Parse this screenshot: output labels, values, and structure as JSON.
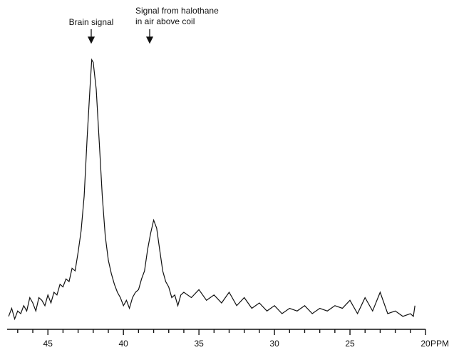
{
  "chart_data": {
    "type": "line",
    "annotations": [
      "Brain signal",
      "Signal from halothane",
      "in air above coil"
    ],
    "xlabel": "PPM",
    "xlim": [
      47.7,
      20
    ],
    "xticks": [
      45,
      40,
      35,
      30,
      25,
      20
    ],
    "xminor_ticks": [
      47,
      46,
      44,
      43,
      42,
      41,
      39,
      38,
      37,
      36,
      34,
      33,
      32,
      31,
      29,
      28,
      27,
      26,
      24,
      23,
      22,
      21
    ],
    "ylim": [
      0,
      100
    ],
    "color": "#111111",
    "x": [
      47.6,
      47.4,
      47.2,
      47.0,
      46.8,
      46.6,
      46.4,
      46.2,
      46.0,
      45.8,
      45.6,
      45.4,
      45.2,
      45.0,
      44.8,
      44.6,
      44.4,
      44.2,
      44.0,
      43.8,
      43.6,
      43.4,
      43.2,
      43.0,
      42.8,
      42.6,
      42.4,
      42.2,
      42.1,
      42.0,
      41.8,
      41.6,
      41.4,
      41.2,
      41.0,
      40.8,
      40.6,
      40.4,
      40.2,
      40.0,
      39.8,
      39.6,
      39.4,
      39.2,
      39.0,
      38.8,
      38.6,
      38.4,
      38.2,
      38.0,
      37.8,
      37.6,
      37.4,
      37.2,
      37.0,
      36.8,
      36.6,
      36.4,
      36.2,
      36.0,
      35.5,
      35.0,
      34.5,
      34.0,
      33.5,
      33.0,
      32.5,
      32.0,
      31.5,
      31.0,
      30.5,
      30.0,
      29.5,
      29.0,
      28.5,
      28.0,
      27.5,
      27.0,
      26.5,
      26.0,
      25.5,
      25.0,
      24.5,
      24.0,
      23.5,
      23.0,
      22.5,
      22.0,
      21.5,
      21.0,
      20.8,
      20.7
    ],
    "values": [
      3,
      6,
      2,
      5,
      4,
      7,
      5,
      10,
      8,
      5,
      10,
      9,
      7,
      11,
      8,
      12,
      11,
      15,
      14,
      17,
      16,
      21,
      20,
      27,
      35,
      48,
      70,
      90,
      99,
      98,
      88,
      68,
      48,
      33,
      24,
      19,
      15,
      12,
      10,
      7,
      9,
      6,
      10,
      12,
      13,
      17,
      20,
      28,
      34,
      39,
      36,
      28,
      20,
      16,
      14,
      10,
      11,
      7,
      11,
      12,
      10,
      13,
      9,
      11,
      8,
      12,
      7,
      10,
      6,
      8,
      5,
      7,
      4,
      6,
      5,
      7,
      4,
      6,
      5,
      7,
      6,
      9,
      4,
      10,
      5,
      12,
      4,
      5,
      3,
      4,
      3,
      7
    ]
  }
}
